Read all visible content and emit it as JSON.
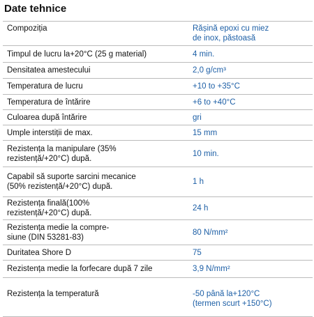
{
  "header": {
    "title": "Date tehnice"
  },
  "table": {
    "rows": [
      [
        "Compoziția",
        "Rășină epoxi cu miez\nde inox, păstoasă"
      ],
      [
        "Timpul de lucru la+20°C (25 g material)",
        "4 min."
      ],
      [
        "Densitatea amestecului",
        "2,0 g/cm³"
      ],
      [
        "Temperatura de lucru",
        "+10 to +35°C"
      ],
      [
        "Temperatura de întărire",
        "+6 to +40°C"
      ],
      [
        "Culoarea după întărire",
        "gri"
      ],
      [
        "Umple interstiții de max.",
        "15 mm"
      ],
      [
        "Rezistența la manipulare (35%\nrezistență/+20°C) după.",
        "10 min."
      ],
      [
        "Capabil să suporte sarcini mecanice\n(50% rezistență/+20°C) după.",
        "1 h"
      ],
      [
        "Rezistența finală(100%\nrezistență/+20°C) după.",
        "24 h"
      ],
      [
        "Rezistența medie la compre-\nsiune (DIN 53281-83)",
        "80 N/mm²"
      ],
      [
        "Duritatea Shore D",
        "75"
      ],
      [
        "Rezistența medie la forfecare după 7 zile",
        "3,9 N/mm²"
      ],
      [
        "Rezistența la temperatură",
        "-50 până la+120°C\n(termen scurt +150°C)"
      ]
    ]
  }
}
